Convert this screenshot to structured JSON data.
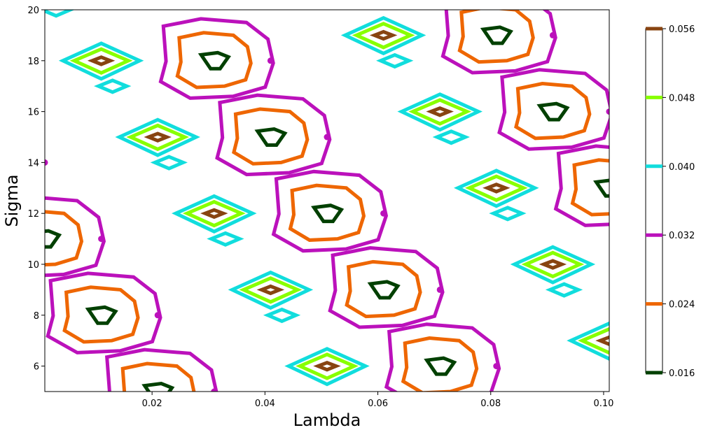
{
  "chart_data": {
    "type": "contour",
    "xlabel": "Lambda",
    "ylabel": "Sigma",
    "xlim": [
      0.001,
      0.101
    ],
    "ylim": [
      5,
      20
    ],
    "x_ticks": [
      {
        "value": 0.02,
        "label": "0.02"
      },
      {
        "value": 0.04,
        "label": "0.04"
      },
      {
        "value": 0.06,
        "label": "0.06"
      },
      {
        "value": 0.08,
        "label": "0.08"
      },
      {
        "value": 0.1,
        "label": "0.10"
      }
    ],
    "y_ticks": [
      {
        "value": 6,
        "label": "6"
      },
      {
        "value": 8,
        "label": "8"
      },
      {
        "value": 10,
        "label": "10"
      },
      {
        "value": 12,
        "label": "12"
      },
      {
        "value": 14,
        "label": "14"
      },
      {
        "value": 16,
        "label": "16"
      },
      {
        "value": 18,
        "label": "18"
      },
      {
        "value": 20,
        "label": "20"
      }
    ],
    "grid": false,
    "colorbar": {
      "position": "right",
      "levels": [
        {
          "value": 0.016,
          "label": "0.016",
          "color": "#004000"
        },
        {
          "value": 0.024,
          "label": "0.024",
          "color": "#ee6600"
        },
        {
          "value": 0.032,
          "label": "0.032",
          "color": "#bb11bb"
        },
        {
          "value": 0.04,
          "label": "0.040",
          "color": "#11dddd"
        },
        {
          "value": 0.048,
          "label": "0.048",
          "color": "#88ff00"
        },
        {
          "value": 0.056,
          "label": "0.056",
          "color": "#884411"
        }
      ]
    },
    "peaks": [
      [
        0.011,
        18
      ],
      [
        0.061,
        19
      ],
      [
        0.071,
        16
      ],
      [
        0.021,
        15
      ],
      [
        0.081,
        13
      ],
      [
        0.031,
        12
      ],
      [
        0.091,
        10
      ],
      [
        0.041,
        9
      ],
      [
        0.101,
        7
      ],
      [
        0.051,
        6
      ]
    ],
    "troughs": [
      [
        0.031,
        18
      ],
      [
        0.081,
        19
      ],
      [
        0.091,
        16
      ],
      [
        0.041,
        15
      ],
      [
        0.101,
        13
      ],
      [
        0.051,
        12
      ],
      [
        0.001,
        11
      ],
      [
        0.061,
        9
      ],
      [
        0.011,
        8
      ],
      [
        0.071,
        6
      ],
      [
        0.021,
        5
      ]
    ],
    "markers": [
      [
        0.041,
        18
      ],
      [
        0.091,
        19
      ],
      [
        0.101,
        16
      ],
      [
        0.051,
        15
      ],
      [
        0.001,
        14
      ],
      [
        0.061,
        12
      ],
      [
        0.011,
        11
      ],
      [
        0.071,
        9
      ],
      [
        0.021,
        8
      ],
      [
        0.081,
        6
      ],
      [
        0.031,
        5
      ]
    ]
  }
}
